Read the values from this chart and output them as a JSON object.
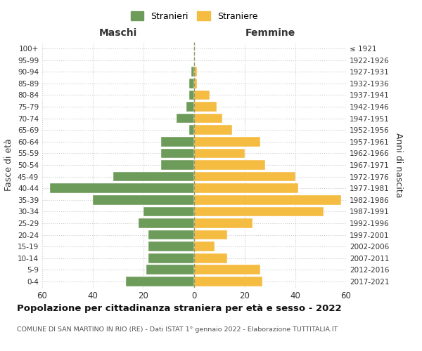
{
  "age_groups": [
    "0-4",
    "5-9",
    "10-14",
    "15-19",
    "20-24",
    "25-29",
    "30-34",
    "35-39",
    "40-44",
    "45-49",
    "50-54",
    "55-59",
    "60-64",
    "65-69",
    "70-74",
    "75-79",
    "80-84",
    "85-89",
    "90-94",
    "95-99",
    "100+"
  ],
  "birth_years": [
    "2017-2021",
    "2012-2016",
    "2007-2011",
    "2002-2006",
    "1997-2001",
    "1992-1996",
    "1987-1991",
    "1982-1986",
    "1977-1981",
    "1972-1976",
    "1967-1971",
    "1962-1966",
    "1957-1961",
    "1952-1956",
    "1947-1951",
    "1942-1946",
    "1937-1941",
    "1932-1936",
    "1927-1931",
    "1922-1926",
    "≤ 1921"
  ],
  "maschi": [
    27,
    19,
    18,
    18,
    18,
    22,
    20,
    40,
    57,
    32,
    13,
    13,
    13,
    2,
    7,
    3,
    2,
    2,
    1,
    0,
    0
  ],
  "femmine": [
    27,
    26,
    13,
    8,
    13,
    23,
    51,
    58,
    41,
    40,
    28,
    20,
    26,
    15,
    11,
    9,
    6,
    1,
    1,
    0,
    0
  ],
  "color_maschi": "#6d9b5a",
  "color_femmine": "#f5bc42",
  "grid_color": "#cccccc",
  "dashed_color": "#999966",
  "title": "Popolazione per cittadinanza straniera per età e sesso - 2022",
  "subtitle": "COMUNE DI SAN MARTINO IN RIO (RE) - Dati ISTAT 1° gennaio 2022 - Elaborazione TUTTITALIA.IT",
  "label_maschi": "Maschi",
  "label_femmine": "Femmine",
  "ylabel_left": "Fasce di età",
  "ylabel_right": "Anni di nascita",
  "legend_stranieri": "Stranieri",
  "legend_straniere": "Straniere",
  "xlim": 60
}
